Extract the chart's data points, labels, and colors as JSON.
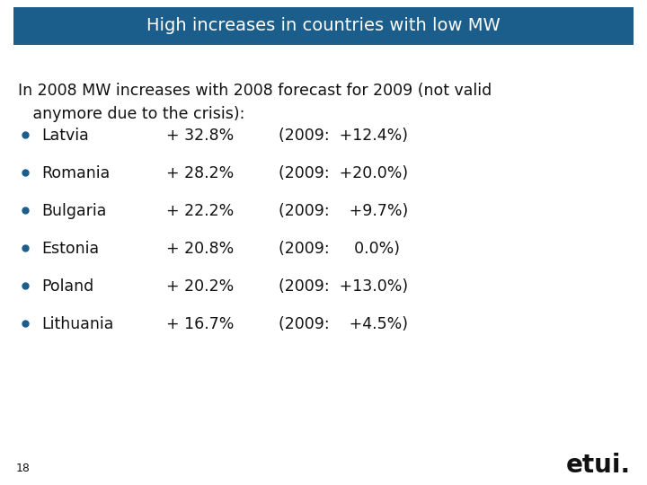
{
  "title": "High increases in countries with low MW",
  "title_bg_color": "#1B5E8C",
  "title_text_color": "#FFFFFF",
  "background_color": "#FFFFFF",
  "intro_line1": "In 2008 MW increases with 2008 forecast for 2009 (not valid",
  "intro_line2": "   anymore due to the crisis):",
  "bullet_color": "#1B5E8C",
  "bullet_items": [
    {
      "country": "Latvia",
      "pct2008": "+ 32.8%",
      "year2009": "(2009:  +12.4%)"
    },
    {
      "country": "Romania",
      "pct2008": "+ 28.2%",
      "year2009": "(2009:  +20.0%)"
    },
    {
      "country": "Bulgaria",
      "pct2008": "+ 22.2%",
      "year2009": "(2009:    +9.7%)"
    },
    {
      "country": "Estonia",
      "pct2008": "+ 20.8%",
      "year2009": "(2009:     0.0%)"
    },
    {
      "country": "Poland",
      "pct2008": "+ 20.2%",
      "year2009": "(2009:  +13.0%)"
    },
    {
      "country": "Lithuania",
      "pct2008": "+ 16.7%",
      "year2009": "(2009:    +4.5%)"
    }
  ],
  "page_number": "18",
  "etui_text": "etui.",
  "text_color": "#111111",
  "font_size_title": 14,
  "font_size_body": 12.5,
  "font_size_page": 9,
  "font_size_etui": 20
}
